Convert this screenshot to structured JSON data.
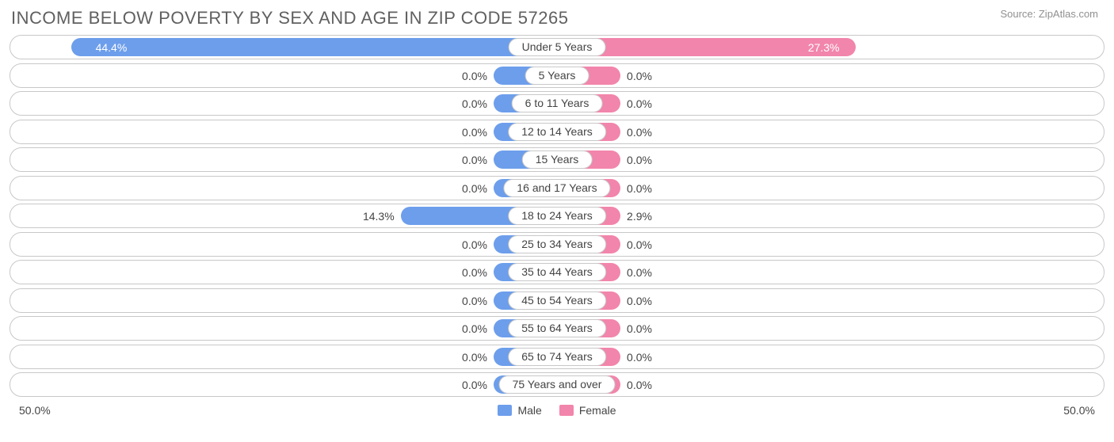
{
  "title": "INCOME BELOW POVERTY BY SEX AND AGE IN ZIP CODE 57265",
  "source": "Source: ZipAtlas.com",
  "axis_max_label": "50.0%",
  "axis_max_value": 50.0,
  "colors": {
    "male": "#6d9eeb",
    "female": "#f285ab",
    "track_border": "#c8c8c8",
    "background": "#ffffff",
    "text": "#444444",
    "title": "#606060",
    "source": "#909090"
  },
  "min_bar_pct": 5.8,
  "label_inside_threshold": 20.0,
  "legend": {
    "male": "Male",
    "female": "Female"
  },
  "rows": [
    {
      "category": "Under 5 Years",
      "male": 44.4,
      "female": 27.3
    },
    {
      "category": "5 Years",
      "male": 0.0,
      "female": 0.0
    },
    {
      "category": "6 to 11 Years",
      "male": 0.0,
      "female": 0.0
    },
    {
      "category": "12 to 14 Years",
      "male": 0.0,
      "female": 0.0
    },
    {
      "category": "15 Years",
      "male": 0.0,
      "female": 0.0
    },
    {
      "category": "16 and 17 Years",
      "male": 0.0,
      "female": 0.0
    },
    {
      "category": "18 to 24 Years",
      "male": 14.3,
      "female": 2.9
    },
    {
      "category": "25 to 34 Years",
      "male": 0.0,
      "female": 0.0
    },
    {
      "category": "35 to 44 Years",
      "male": 0.0,
      "female": 0.0
    },
    {
      "category": "45 to 54 Years",
      "male": 0.0,
      "female": 0.0
    },
    {
      "category": "55 to 64 Years",
      "male": 0.0,
      "female": 0.0
    },
    {
      "category": "65 to 74 Years",
      "male": 0.0,
      "female": 0.0
    },
    {
      "category": "75 Years and over",
      "male": 0.0,
      "female": 0.0
    }
  ]
}
